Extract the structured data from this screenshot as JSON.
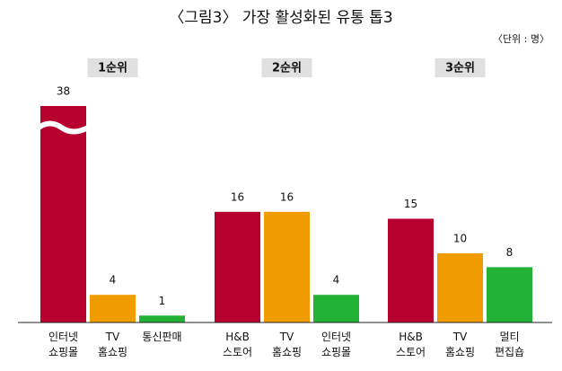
{
  "chart_data": {
    "type": "bar",
    "title": "〈그림3〉 가장 활성화된 유통 톱3",
    "unit": "〈단위 : 명〉",
    "colors": [
      "#b8002e",
      "#f09c00",
      "#22b236"
    ],
    "axis_break": true,
    "groups": [
      {
        "label": "1순위",
        "categories": [
          [
            "인터넷",
            "쇼핑몰"
          ],
          [
            "TV",
            "홈쇼핑"
          ],
          [
            "통신판매"
          ]
        ],
        "values": [
          38,
          4,
          1
        ]
      },
      {
        "label": "2순위",
        "categories": [
          [
            "H&B",
            "스토어"
          ],
          [
            "TV",
            "홈쇼핑"
          ],
          [
            "인터넷",
            "쇼핑몰"
          ]
        ],
        "values": [
          16,
          16,
          4
        ]
      },
      {
        "label": "3순위",
        "categories": [
          [
            "H&B",
            "스토어"
          ],
          [
            "TV",
            "홈쇼핑"
          ],
          [
            "멀티",
            "편집숍"
          ]
        ],
        "values": [
          15,
          10,
          8
        ]
      }
    ]
  }
}
